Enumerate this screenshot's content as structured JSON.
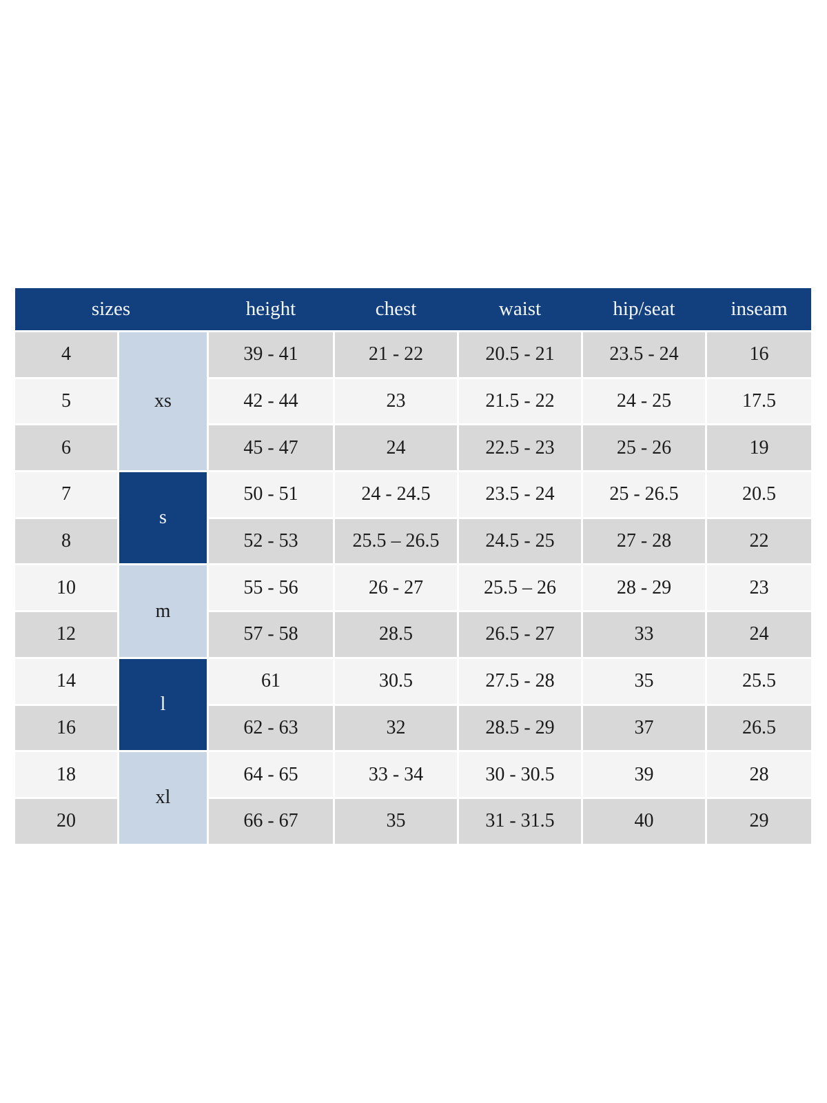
{
  "colors": {
    "header_bg": "#12407e",
    "header_text": "#f4f6f9",
    "group_light_bg": "#c8d5e5",
    "group_dark_bg": "#12407e",
    "row_gray_bg": "#d8d8d8",
    "row_light_bg": "#f4f4f4",
    "body_text": "#1b1b1b",
    "gap": "#ffffff"
  },
  "chart_data": {
    "type": "table",
    "columns": {
      "sizes": "sizes",
      "height": "height",
      "chest": "chest",
      "waist": "waist",
      "hip_seat": "hip/seat",
      "inseam": "inseam"
    },
    "size_groups": [
      {
        "label": "xs",
        "variant": "light",
        "row_span": 3,
        "sizes": [
          "4",
          "5",
          "6"
        ]
      },
      {
        "label": "s",
        "variant": "dark",
        "row_span": 2,
        "sizes": [
          "7",
          "8"
        ]
      },
      {
        "label": "m",
        "variant": "light",
        "row_span": 2,
        "sizes": [
          "10",
          "12"
        ]
      },
      {
        "label": "l",
        "variant": "dark",
        "row_span": 2,
        "sizes": [
          "14",
          "16"
        ]
      },
      {
        "label": "xl",
        "variant": "light",
        "row_span": 2,
        "sizes": [
          "18",
          "20"
        ]
      }
    ],
    "rows": [
      {
        "size": "4",
        "height": "39 - 41",
        "chest": "21 - 22",
        "waist": "20.5 - 21",
        "hip_seat": "23.5 - 24",
        "inseam": "16"
      },
      {
        "size": "5",
        "height": "42 - 44",
        "chest": "23",
        "waist": "21.5 - 22",
        "hip_seat": "24 - 25",
        "inseam": "17.5"
      },
      {
        "size": "6",
        "height": "45 - 47",
        "chest": "24",
        "waist": "22.5 - 23",
        "hip_seat": "25 - 26",
        "inseam": "19"
      },
      {
        "size": "7",
        "height": "50 - 51",
        "chest": "24 - 24.5",
        "waist": "23.5 - 24",
        "hip_seat": "25 - 26.5",
        "inseam": "20.5"
      },
      {
        "size": "8",
        "height": "52 - 53",
        "chest": "25.5 – 26.5",
        "waist": "24.5 - 25",
        "hip_seat": "27 - 28",
        "inseam": "22"
      },
      {
        "size": "10",
        "height": "55 - 56",
        "chest": "26 - 27",
        "waist": "25.5 – 26",
        "hip_seat": "28 - 29",
        "inseam": "23"
      },
      {
        "size": "12",
        "height": "57 - 58",
        "chest": "28.5",
        "waist": "26.5 - 27",
        "hip_seat": "33",
        "inseam": "24"
      },
      {
        "size": "14",
        "height": "61",
        "chest": "30.5",
        "waist": "27.5 - 28",
        "hip_seat": "35",
        "inseam": "25.5"
      },
      {
        "size": "16",
        "height": "62 - 63",
        "chest": "32",
        "waist": "28.5 - 29",
        "hip_seat": "37",
        "inseam": "26.5"
      },
      {
        "size": "18",
        "height": "64 - 65",
        "chest": "33 - 34",
        "waist": "30 - 30.5",
        "hip_seat": "39",
        "inseam": "28"
      },
      {
        "size": "20",
        "height": "66 - 67",
        "chest": "35",
        "waist": "31 - 31.5",
        "hip_seat": "40",
        "inseam": "29"
      }
    ]
  }
}
